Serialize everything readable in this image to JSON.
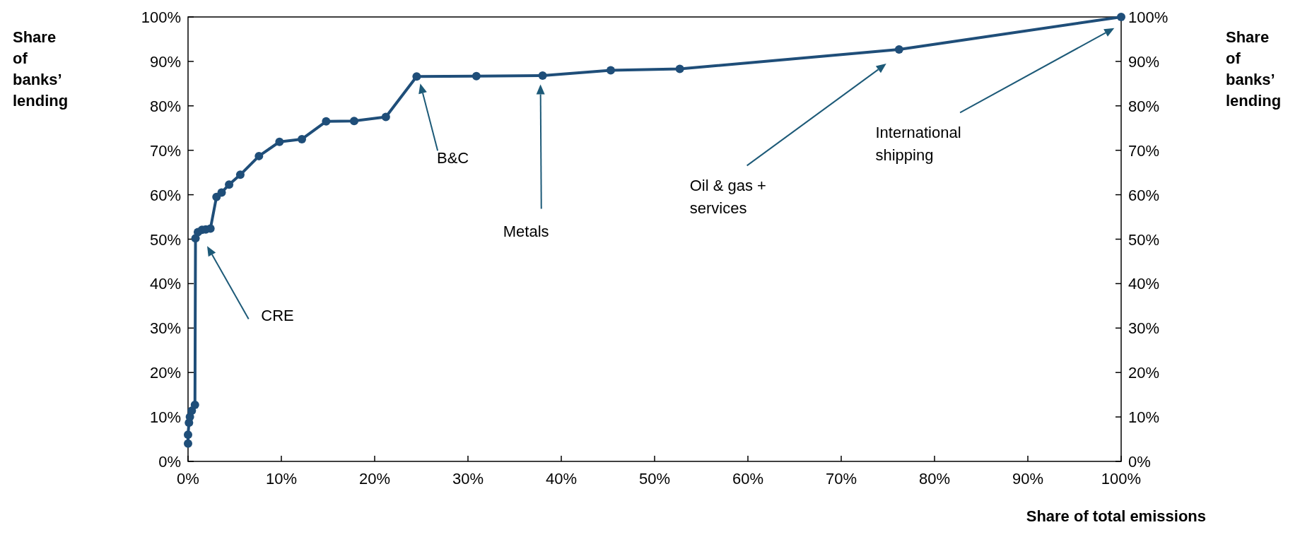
{
  "chart_data": {
    "type": "line",
    "xlabel": "Share of total emissions",
    "ylabel": "Share of banks’ lending",
    "y2label": "Share of banks’ lending",
    "x": [
      0.0,
      0.0,
      0.1,
      0.2,
      0.4,
      0.74,
      0.8,
      1.06,
      1.5,
      1.9,
      2.4,
      3.05,
      3.6,
      4.4,
      5.6,
      7.6,
      9.8,
      12.2,
      14.8,
      17.8,
      21.2,
      24.5,
      30.9,
      38.0,
      45.3,
      52.7,
      76.2,
      100
    ],
    "series": [
      {
        "color": "#1f4e79",
        "values": [
          4.0,
          6.0,
          8.7,
          10.0,
          11.4,
          12.7,
          50.2,
          51.6,
          52.1,
          52.2,
          52.4,
          59.5,
          60.5,
          62.3,
          64.5,
          68.7,
          71.9,
          72.5,
          76.5,
          76.6,
          77.5,
          86.6,
          86.7,
          86.8,
          88.0,
          88.3,
          92.7,
          100
        ]
      }
    ],
    "marker": "circle",
    "line_style": "solid",
    "grid": false,
    "xlim": [
      0,
      100
    ],
    "ylim": [
      0,
      100
    ],
    "y2lim": [
      0,
      100
    ],
    "xticks": [
      {
        "value": 0,
        "label": "0%"
      },
      {
        "value": 10,
        "label": "10%"
      },
      {
        "value": 20,
        "label": "20%"
      },
      {
        "value": 30,
        "label": "30%"
      },
      {
        "value": 40,
        "label": "40%"
      },
      {
        "value": 50,
        "label": "50%"
      },
      {
        "value": 60,
        "label": "60%"
      },
      {
        "value": 70,
        "label": "70%"
      },
      {
        "value": 80,
        "label": "80%"
      },
      {
        "value": 90,
        "label": "90%"
      },
      {
        "value": 100,
        "label": "100%"
      }
    ],
    "yticks": [
      {
        "value": 0,
        "label": "0%"
      },
      {
        "value": 10,
        "label": "10%"
      },
      {
        "value": 20,
        "label": "20%"
      },
      {
        "value": 30,
        "label": "30%"
      },
      {
        "value": 40,
        "label": "40%"
      },
      {
        "value": 50,
        "label": "50%"
      },
      {
        "value": 60,
        "label": "60%"
      },
      {
        "value": 70,
        "label": "70%"
      },
      {
        "value": 80,
        "label": "80%"
      },
      {
        "value": 90,
        "label": "90%"
      },
      {
        "value": 100,
        "label": "100%"
      }
    ],
    "y2ticks": [
      {
        "value": 0,
        "label": "0%"
      },
      {
        "value": 10,
        "label": "10%"
      },
      {
        "value": 20,
        "label": "20%"
      },
      {
        "value": 30,
        "label": "30%"
      },
      {
        "value": 40,
        "label": "40%"
      },
      {
        "value": 50,
        "label": "50%"
      },
      {
        "value": 60,
        "label": "60%"
      },
      {
        "value": 70,
        "label": "70%"
      },
      {
        "value": 80,
        "label": "80%"
      },
      {
        "value": 90,
        "label": "90%"
      },
      {
        "value": 100,
        "label": "100%"
      }
    ],
    "annotations": [
      "CRE",
      "B&C",
      "Metals",
      "Oil & gas +\nservices",
      "International\nshipping"
    ]
  }
}
